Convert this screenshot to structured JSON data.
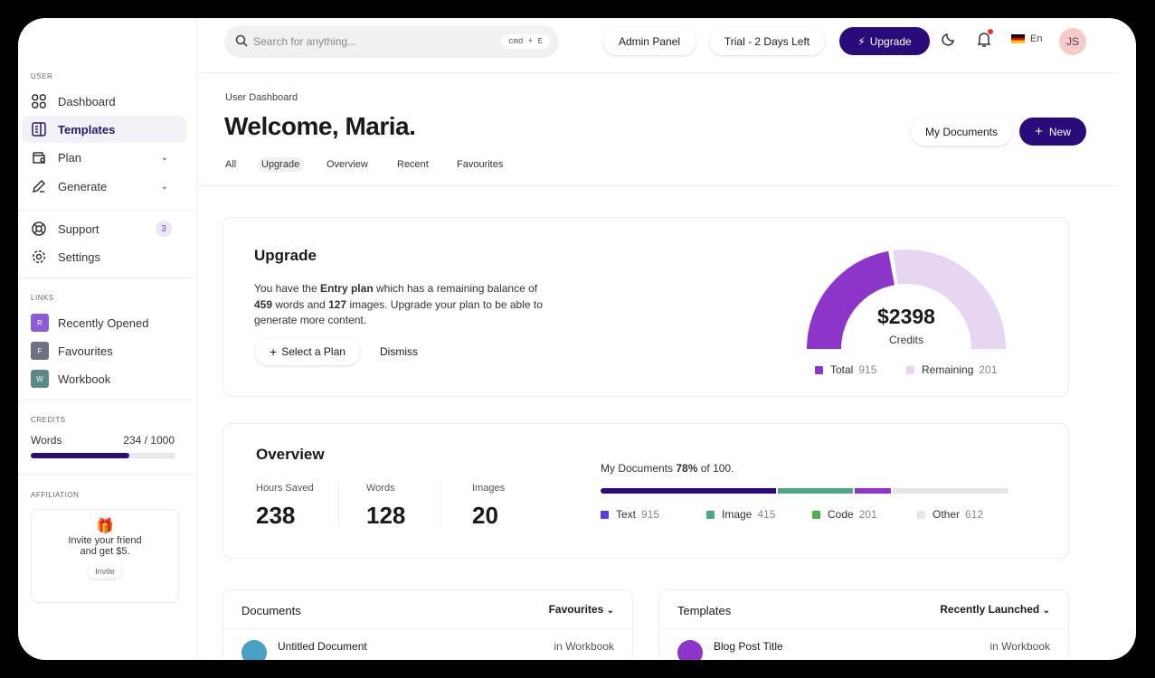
{
  "sidebar": {
    "user_label": "USER",
    "items": [
      {
        "label": "Dashboard",
        "icon": "grid-icon"
      },
      {
        "label": "Templates",
        "icon": "document-icon",
        "active": true
      },
      {
        "label": "Plan",
        "icon": "wallet-icon"
      },
      {
        "label": "Generate",
        "icon": "pencil-icon"
      },
      {
        "label": "Support",
        "icon": "lifebuoy-icon",
        "badge": "3"
      },
      {
        "label": "Settings",
        "icon": "gear-icon"
      }
    ],
    "links_label": "LINKS",
    "links": [
      {
        "letter": "R",
        "label": "Recently Opened",
        "color": "#8a5cd6"
      },
      {
        "letter": "F",
        "label": "Favourites",
        "color": "#6e7180"
      },
      {
        "letter": "W",
        "label": "Workbook",
        "color": "#5a8a85"
      }
    ],
    "credits_label": "CREDITS",
    "credits": {
      "label": "Words",
      "value": "234 / 1000",
      "fraction": 0.68
    },
    "affiliation_label": "AFFILIATION",
    "affiliation": {
      "text1": "Invite your friend",
      "text2": "and get $5.",
      "button": "Invite"
    }
  },
  "header": {
    "search_placeholder": "Search for anything...",
    "shortcut": "cmd + E",
    "admin": "Admin Panel",
    "trial": "Trial - 2 Days Left",
    "upgrade": "Upgrade",
    "language": "En",
    "avatar": "JS"
  },
  "page": {
    "breadcrumb": "User Dashboard",
    "title": "Welcome, Maria.",
    "my_documents": "My Documents",
    "new": "New",
    "tabs": [
      "All",
      "Upgrade",
      "Overview",
      "Recent",
      "Favourites"
    ],
    "active_tab": 1
  },
  "upgrade": {
    "title": "Upgrade",
    "t1": "You have the ",
    "plan": "Entry plan",
    "t2": " which has a remaining balance of",
    "words": "459",
    "t3": " words and ",
    "images": "127",
    "t4": " images. Upgrade your plan to be able to",
    "t5": "generate more content.",
    "select": "Select a Plan",
    "dismiss": "Dismiss",
    "gauge": {
      "value": "$2398",
      "label": "Credits",
      "fill_fraction": 0.45,
      "colors": [
        "#8b35c9",
        "#e6d6f1"
      ],
      "legend": [
        {
          "label": "Total",
          "value": "915"
        },
        {
          "label": "Remaining",
          "value": "201"
        }
      ]
    }
  },
  "overview": {
    "title": "Overview",
    "stats": [
      {
        "label": "Hours Saved",
        "value": "238"
      },
      {
        "label": "Words",
        "value": "128"
      },
      {
        "label": "Images",
        "value": "20"
      }
    ],
    "docs_t1": "My Documents ",
    "docs_pct": "78%",
    "docs_t2": " of 100.",
    "segments": [
      {
        "label": "Text",
        "value": "915",
        "percent": 43.7,
        "color": "#2a0b7a",
        "legend_color": "#5b3ee0"
      },
      {
        "label": "Image",
        "value": "415",
        "percent": 18.5,
        "color": "#4ea58a",
        "legend_color": "#4ea58a"
      },
      {
        "label": "Code",
        "value": "201",
        "percent": 9,
        "color": "#8b35c9",
        "legend_color": "#4caf50"
      },
      {
        "label": "Other",
        "value": "612",
        "percent": 28.8,
        "color": "#e6e6e6",
        "legend_color": "#e6e6e6"
      }
    ]
  },
  "documents": {
    "title": "Documents",
    "filter": "Favourites",
    "row": {
      "name": "Untitled Document",
      "location": "in Workbook"
    }
  },
  "templates": {
    "title": "Templates",
    "filter": "Recently Launched",
    "row": {
      "name": "Blog Post Title",
      "location": "in Workbook"
    }
  }
}
